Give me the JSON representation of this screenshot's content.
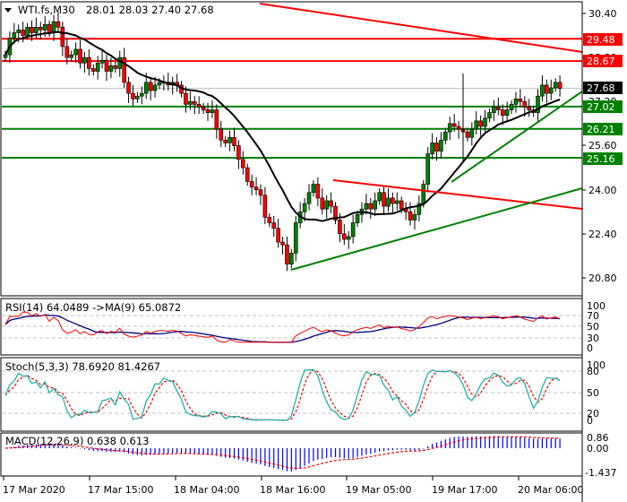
{
  "header": {
    "symbol": "WTI.fs,M30",
    "ohlc": "28.01 28.03 27.40 27.68",
    "menu_icon": "triangle-down-icon"
  },
  "colors": {
    "bull": "#008000",
    "bear": "#ff0000",
    "ma": "#000000",
    "support": "#008000",
    "resistance": "#ff0000",
    "current_price_bg": "#000000",
    "rsi": "#ff0000",
    "rsi_ma": "#000080",
    "stoch_main": "#20b2aa",
    "stoch_signal": "#ff0000",
    "macd_hist": "#0000ff",
    "macd_signal": "#ff0000",
    "grid": "#c0c0c0"
  },
  "chart_data": [
    {
      "type": "candlestick",
      "title": "WTI.fs,M30",
      "ohlc_last": {
        "open": 28.01,
        "high": 28.03,
        "low": 27.4,
        "close": 27.68
      },
      "y_ticks": [
        "30.40",
        "28.80",
        "27.20",
        "25.60",
        "24.00",
        "22.40",
        "20.80"
      ],
      "ylim": [
        20.5,
        30.8
      ],
      "price_levels": [
        {
          "value": "29.48",
          "color": "#ff0000",
          "kind": "resistance"
        },
        {
          "value": "28.67",
          "color": "#ff0000",
          "kind": "resistance"
        },
        {
          "value": "27.68",
          "color": "#000000",
          "kind": "current"
        },
        {
          "value": "27.02",
          "color": "#008000",
          "kind": "support"
        },
        {
          "value": "26.21",
          "color": "#008000",
          "kind": "support"
        },
        {
          "value": "25.16",
          "color": "#008000",
          "kind": "support"
        }
      ],
      "trendlines": [
        {
          "color": "#ff0000",
          "from": [
            290,
            4
          ],
          "to": [
            650,
            58
          ]
        },
        {
          "color": "#ff0000",
          "from": [
            372,
            201
          ],
          "to": [
            650,
            233
          ]
        },
        {
          "color": "#008000",
          "from": [
            325,
            301
          ],
          "to": [
            650,
            210
          ]
        },
        {
          "color": "#008000",
          "from": [
            504,
            203
          ],
          "to": [
            650,
            102
          ]
        }
      ],
      "close_series": [
        28.9,
        29.5,
        29.7,
        29.8,
        29.6,
        29.9,
        29.7,
        29.9,
        29.8,
        30.0,
        29.7,
        30.1,
        29.9,
        29.2,
        28.8,
        28.9,
        29.1,
        28.6,
        28.8,
        28.4,
        28.3,
        28.6,
        28.7,
        28.3,
        28.5,
        28.4,
        28.8,
        27.9,
        27.5,
        27.3,
        27.4,
        27.5,
        27.9,
        27.6,
        27.8,
        27.9,
        27.9,
        27.8,
        27.9,
        27.8,
        27.5,
        27.1,
        27.2,
        27.1,
        27.0,
        26.9,
        26.8,
        26.9,
        26.2,
        25.8,
        25.7,
        25.9,
        25.6,
        25.1,
        24.8,
        24.3,
        24.1,
        24.0,
        23.8,
        23.0,
        22.8,
        22.6,
        22.1,
        22.0,
        21.3,
        21.7,
        22.8,
        23.2,
        23.5,
        23.9,
        24.2,
        23.7,
        23.3,
        23.6,
        23.4,
        22.9,
        22.4,
        22.2,
        22.3,
        22.8,
        23.1,
        23.3,
        23.5,
        23.3,
        23.6,
        23.9,
        23.4,
        23.7,
        23.5,
        23.6,
        23.3,
        23.2,
        22.9,
        23.1,
        23.5,
        24.2,
        25.3,
        25.7,
        25.4,
        25.8,
        26.1,
        26.4,
        26.3,
        26.2,
        26.1,
        25.9,
        26.2,
        26.5,
        26.3,
        26.6,
        26.8,
        27.0,
        26.9,
        26.7,
        26.9,
        27.1,
        27.3,
        27.2,
        27.0,
        26.9,
        26.8,
        27.4,
        27.8,
        27.5,
        27.7,
        27.9,
        27.68
      ],
      "ma_period_label": "MA",
      "x_tick_labels": [
        "17 Mar 2020",
        "17 Mar 15:00",
        "18 Mar 04:00",
        "18 Mar 16:00",
        "19 Mar 05:00",
        "19 Mar 17:00",
        "20 Mar 06:00"
      ]
    },
    {
      "type": "line",
      "title": "RSI(14) 64.0489  ->MA(9) 65.0872",
      "y_ticks": [
        "100",
        "70",
        "50",
        "30",
        "0"
      ],
      "levels": [
        70,
        50,
        30
      ],
      "series": [
        {
          "name": "RSI(14)",
          "last": 64.0489
        },
        {
          "name": "MA(9)",
          "last": 65.0872
        }
      ]
    },
    {
      "type": "line",
      "title": "Stoch(5,3,3) 78.6920 81.4267",
      "y_ticks": [
        "100",
        "80",
        "50",
        "20",
        "0"
      ],
      "levels": [
        80,
        50,
        20
      ],
      "series": [
        {
          "name": "Main",
          "last": 78.692
        },
        {
          "name": "Signal",
          "last": 81.4267
        }
      ]
    },
    {
      "type": "bar",
      "title": "MACD(12,26,9) 0.638 0.613",
      "y_ticks": [
        "0.86",
        "0.00",
        "-1.437"
      ],
      "series": [
        {
          "name": "MACD",
          "last": 0.638
        },
        {
          "name": "Signal",
          "last": 0.613
        }
      ]
    }
  ],
  "price_axis": {
    "ticks": [
      "30.40",
      "28.80",
      "27.20",
      "25.60",
      "24.00",
      "22.40",
      "20.80"
    ],
    "labels": {
      "r1": "29.48",
      "r2": "28.67",
      "current": "27.68",
      "s1": "27.02",
      "s2": "26.21",
      "s3": "25.16"
    }
  },
  "rsi": {
    "title": "RSI(14) 64.0489  ->MA(9) 65.0872",
    "ticks": [
      "100",
      "70",
      "50",
      "30",
      "0"
    ]
  },
  "stoch": {
    "title": "Stoch(5,3,3) 78.6920 81.4267",
    "ticks": [
      "100",
      "80",
      "50",
      "20",
      "0"
    ]
  },
  "macd": {
    "title": "MACD(12,26,9) 0.638 0.613",
    "ticks": [
      "0.86",
      "0.00",
      "-1.437"
    ]
  },
  "time_axis": {
    "labels": [
      "17 Mar 2020",
      "17 Mar 15:00",
      "18 Mar 04:00",
      "18 Mar 16:00",
      "19 Mar 05:00",
      "19 Mar 17:00",
      "20 Mar 06:00"
    ]
  }
}
